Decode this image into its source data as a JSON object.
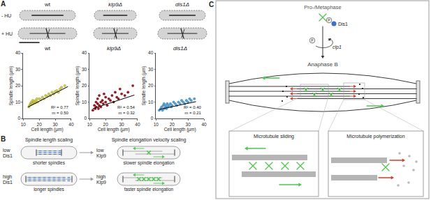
{
  "chart_data": [
    {
      "type": "scatter",
      "title": "wt",
      "x_label": "Cell length (µm)",
      "y_label": "Spindle length (µm)",
      "xlim": [
        10,
        40
      ],
      "ylim": [
        0,
        40
      ],
      "xticks": [
        10,
        20,
        30,
        40
      ],
      "yticks": [
        0,
        10,
        20,
        30,
        40
      ],
      "grid": false,
      "color": "#d6d23a",
      "marker": "circle",
      "x": [
        13.5,
        14,
        14.5,
        15,
        15,
        15.5,
        16,
        16,
        16.5,
        17,
        17.5,
        18,
        18.5,
        19,
        20,
        21,
        22,
        23,
        24,
        25,
        26,
        27,
        28,
        29,
        30,
        31,
        32,
        33,
        34,
        36
      ],
      "values": [
        7,
        8,
        9,
        8.5,
        10,
        9,
        9,
        11,
        10,
        10.5,
        9.5,
        11,
        12,
        10,
        12,
        11.5,
        13,
        12,
        14,
        13.5,
        15,
        14,
        16,
        15,
        16.5,
        17,
        16,
        18,
        19,
        20
      ],
      "fit": {
        "x": [
          13,
          38
        ],
        "values": [
          7,
          19.5
        ],
        "color": "#000000"
      },
      "annotations": [
        "R² = 0.77",
        "m = 0.50"
      ]
    },
    {
      "type": "scatter",
      "title": "klp9Δ",
      "x_label": "Cell length (µm)",
      "y_label": "Spindle length (µm)",
      "xlim": [
        10,
        40
      ],
      "ylim": [
        0,
        40
      ],
      "xticks": [
        10,
        20,
        30,
        40
      ],
      "yticks": [
        0,
        10,
        20,
        30,
        40
      ],
      "grid": false,
      "color": "#a3141c",
      "marker": "circle",
      "x": [
        12,
        13,
        13.5,
        14,
        14,
        15,
        15,
        15.5,
        16,
        16,
        17,
        17,
        18,
        18.5,
        19,
        20,
        20,
        21,
        22,
        23,
        24,
        25,
        26,
        27,
        28,
        29,
        30,
        32,
        34,
        37
      ],
      "values": [
        5,
        8,
        6,
        10,
        7,
        9,
        12,
        6,
        8,
        14,
        10,
        7,
        11,
        9,
        15,
        10,
        13,
        8,
        12,
        11,
        14,
        10,
        16,
        13,
        12,
        18,
        15,
        14,
        16,
        20
      ],
      "fit": {
        "x": [
          12,
          38
        ],
        "values": [
          6,
          14.3
        ],
        "color": "#000000"
      },
      "annotations": [
        "R² = 0.54",
        "m = 0.32"
      ]
    },
    {
      "type": "scatter",
      "title": "dis1Δ",
      "x_label": "Cell length (µm)",
      "y_label": "Spindle length (µm)",
      "xlim": [
        10,
        40
      ],
      "ylim": [
        0,
        40
      ],
      "xticks": [
        10,
        20,
        30,
        40
      ],
      "yticks": [
        0,
        10,
        20,
        30,
        40
      ],
      "grid": false,
      "color": "#4aa6e0",
      "marker": "circle",
      "x": [
        12,
        13,
        13.5,
        14,
        14.5,
        15,
        15,
        16,
        16,
        16.5,
        17,
        17.5,
        18,
        19,
        19.5,
        20,
        21,
        22,
        23,
        24,
        25,
        26,
        27,
        28,
        29,
        30,
        31,
        32,
        34
      ],
      "values": [
        5,
        6,
        7,
        5,
        8,
        6,
        9,
        7,
        8,
        6,
        9,
        7,
        8,
        9,
        7,
        8,
        10,
        9,
        8,
        10,
        9,
        11,
        10,
        9,
        11,
        10,
        12,
        11,
        12
      ],
      "fit": {
        "x": [
          12,
          35
        ],
        "values": [
          5.5,
          10.3
        ],
        "color": "#000000"
      },
      "annotations": [
        "R² = 0.40",
        "m = 0.21"
      ]
    }
  ],
  "panel_labels": [
    "A",
    "B",
    "C"
  ],
  "panel_a_images": {
    "columns": [
      "wt",
      "klp9Δ",
      "dis1Δ"
    ],
    "rows": [
      "- HU",
      "+ HU"
    ]
  },
  "panel_b": {
    "headers": [
      "Spindle length scaling",
      "Spindle elongation velocity scaling"
    ],
    "rows": [
      {
        "regulator": [
          "low",
          "Dis1"
        ],
        "result": "shorter spindles",
        "motor": [
          "low",
          "Klp9"
        ],
        "outcome": "slower spindle elongation"
      },
      {
        "regulator": [
          "high",
          "Dis1"
        ],
        "result": "longer spindles",
        "motor": [
          "high",
          "Klp9"
        ],
        "outcome": "faster spindle elongation"
      }
    ]
  },
  "panel_c": {
    "top_stage": "Pro-/Metaphase",
    "bottom_stage": "Anaphase B",
    "protein": "Dis1",
    "phosphate": "P",
    "kinase": "clp1",
    "insets": [
      "Microtubule sliding",
      "Microtubule polymerization"
    ]
  }
}
